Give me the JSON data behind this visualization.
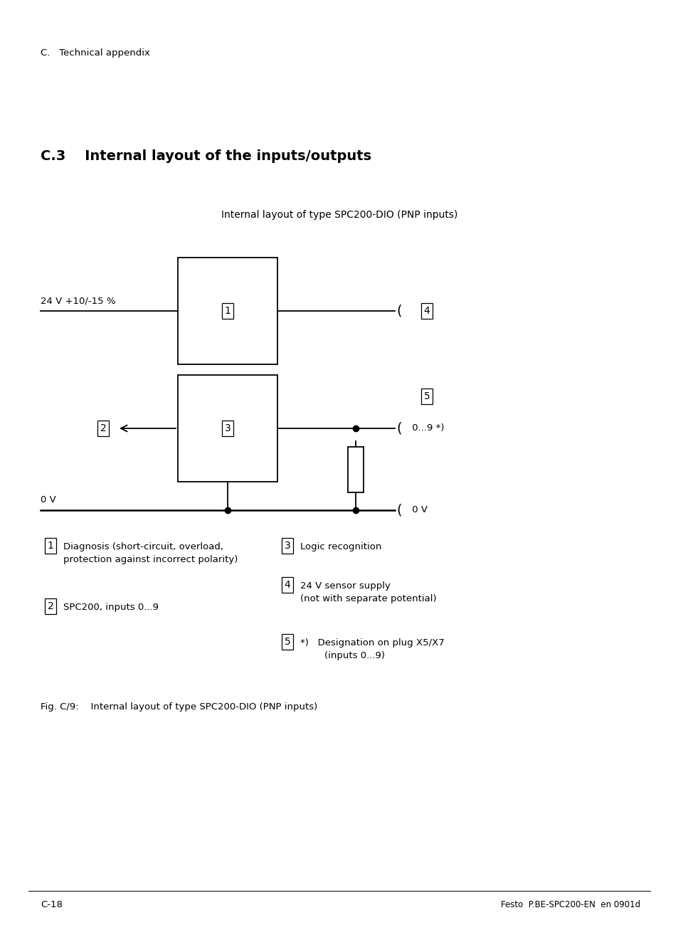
{
  "page_header": "C.   Technical appendix",
  "section_title": "C.3    Internal layout of the inputs/outputs",
  "diagram_title": "Internal layout of type SPC200-DIO (PNP inputs)",
  "fig_caption": "Fig. C/9:    Internal layout of type SPC200-DIO (PNP inputs)",
  "footer_left": "C-18",
  "footer_right": "Festo  P.BE-SPC200-EN  en 0901d",
  "label_24v": "24 V +10/-15 %",
  "label_0v_left": "0 V",
  "label_0v_right": "0 V",
  "bg_color": "#ffffff",
  "line_color": "#000000",
  "font_color": "#000000"
}
